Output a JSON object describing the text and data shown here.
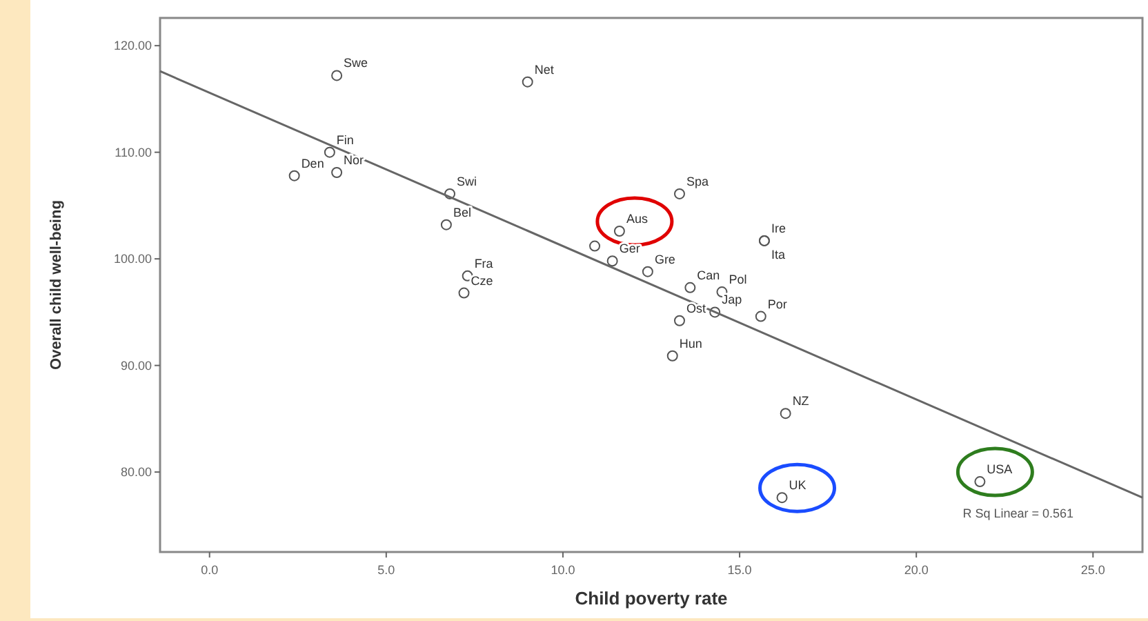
{
  "chart_data": {
    "type": "scatter",
    "xlabel": "Child poverty rate",
    "ylabel": "Overall child well-being",
    "xlim": [
      -1.4,
      26.4
    ],
    "ylim": [
      72.5,
      122.6
    ],
    "xticks": [
      {
        "value": 0,
        "label": "0.0"
      },
      {
        "value": 5,
        "label": "5.0"
      },
      {
        "value": 10,
        "label": "10.0"
      },
      {
        "value": 15,
        "label": "15.0"
      },
      {
        "value": 20,
        "label": "20.0"
      },
      {
        "value": 25,
        "label": "25.0"
      }
    ],
    "yticks": [
      {
        "value": 80,
        "label": "80.00"
      },
      {
        "value": 90,
        "label": "90.00"
      },
      {
        "value": 100,
        "label": "100.00"
      },
      {
        "value": 110,
        "label": "110.00"
      },
      {
        "value": 120,
        "label": "120.00"
      }
    ],
    "grid": false,
    "marker": "circle",
    "series": [
      {
        "color": "#555555",
        "x": [
          3.6,
          9.0,
          3.4,
          3.6,
          2.4,
          6.8,
          6.7,
          7.3,
          7.2,
          11.6,
          10.9,
          11.4,
          12.4,
          13.6,
          14.5,
          13.3,
          15.7,
          15.7,
          15.6,
          14.3,
          13.3,
          13.1,
          16.3,
          16.2,
          21.8
        ],
        "values": [
          117.2,
          116.6,
          110.0,
          108.1,
          107.8,
          106.1,
          103.2,
          98.4,
          96.8,
          102.6,
          101.2,
          99.8,
          98.8,
          97.3,
          96.9,
          106.1,
          101.7,
          101.7,
          94.6,
          95.0,
          94.2,
          90.9,
          85.5,
          77.6,
          79.1
        ]
      },
      {
        "type": "line",
        "marker": "none",
        "color": "#666666",
        "x": [
          -1.4,
          26.4
        ],
        "values": [
          117.6,
          77.6
        ]
      }
    ],
    "annotations": [
      {
        "text": "Swe",
        "x": 3.6,
        "y": 117.2
      },
      {
        "text": "Net",
        "x": 9.0,
        "y": 116.6
      },
      {
        "text": "Fin",
        "x": 3.4,
        "y": 110.0
      },
      {
        "text": "Nor",
        "x": 3.6,
        "y": 108.1
      },
      {
        "text": "Den",
        "x": 2.4,
        "y": 107.8
      },
      {
        "text": "Swi",
        "x": 6.8,
        "y": 106.1
      },
      {
        "text": "Bel",
        "x": 6.7,
        "y": 103.2
      },
      {
        "text": "Fra",
        "x": 7.3,
        "y": 98.4
      },
      {
        "text": "Cze",
        "x": 7.2,
        "y": 96.8
      },
      {
        "text": "Aus",
        "x": 11.6,
        "y": 102.6
      },
      {
        "text": "Ger",
        "x": 11.4,
        "y": 99.8
      },
      {
        "text": "Gre",
        "x": 12.4,
        "y": 98.8
      },
      {
        "text": "Can",
        "x": 13.6,
        "y": 97.3
      },
      {
        "text": "Pol",
        "x": 14.5,
        "y": 96.9
      },
      {
        "text": "Spa",
        "x": 13.3,
        "y": 106.1
      },
      {
        "text": "Ire",
        "x": 15.7,
        "y": 101.7
      },
      {
        "text": "Ita",
        "x": 15.7,
        "y": 101.7
      },
      {
        "text": "Por",
        "x": 15.6,
        "y": 94.6
      },
      {
        "text": "Jap",
        "x": 14.3,
        "y": 95.0
      },
      {
        "text": "Ost",
        "x": 13.3,
        "y": 94.2
      },
      {
        "text": "Hun",
        "x": 13.1,
        "y": 90.9
      },
      {
        "text": "NZ",
        "x": 16.3,
        "y": 85.5
      },
      {
        "text": "UK",
        "x": 16.2,
        "y": 77.6
      },
      {
        "text": "USA",
        "x": 21.8,
        "y": 79.1
      },
      "R Sq Linear = 0.561"
    ]
  }
}
